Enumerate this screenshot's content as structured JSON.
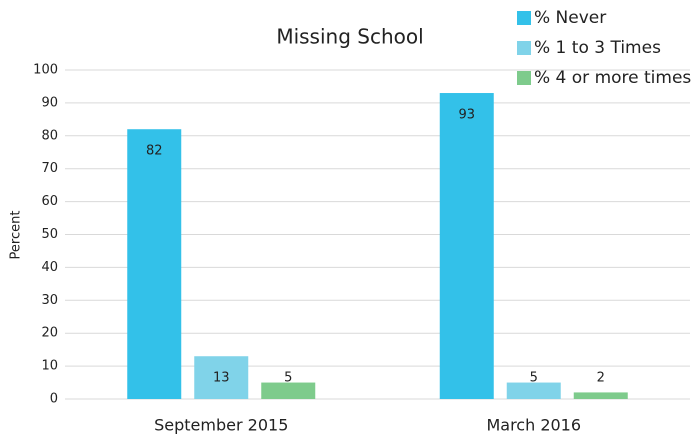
{
  "chart_data": {
    "type": "bar",
    "title": "Missing School",
    "y_label": "Percent",
    "categories": [
      "September 2015",
      "March 2016"
    ],
    "series": [
      {
        "name": "% Never",
        "color": "#33c1e9",
        "values": [
          82,
          93
        ]
      },
      {
        "name": "% 1 to 3 Times",
        "color": "#80d3e9",
        "values": [
          13,
          5
        ]
      },
      {
        "name": "% 4 or more times",
        "color": "#7ecb8c",
        "values": [
          5,
          2
        ]
      }
    ],
    "ylim": [
      0,
      100
    ],
    "yticks": [
      0,
      10,
      20,
      30,
      40,
      50,
      60,
      70,
      80,
      90,
      100
    ],
    "grid": true,
    "legend": "top-right"
  }
}
